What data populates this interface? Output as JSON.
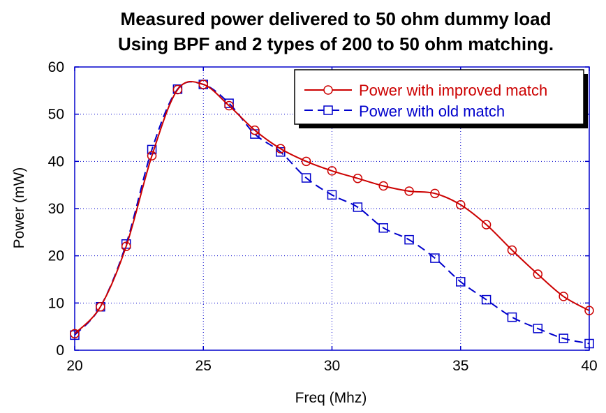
{
  "chart_data": {
    "type": "line",
    "title_lines": [
      "Measured power delivered to 50 ohm dummy load",
      "Using BPF and 2 types of 200 to 50 ohm matching."
    ],
    "xlabel": "Freq (Mhz)",
    "ylabel": "Power (mW)",
    "xlim": [
      20,
      40
    ],
    "ylim": [
      0,
      60
    ],
    "xticks": [
      20,
      25,
      30,
      35,
      40
    ],
    "yticks": [
      0,
      10,
      20,
      30,
      40,
      50,
      60
    ],
    "grid": true,
    "legend_position": "top-right",
    "series": [
      {
        "name": "Power with improved match",
        "color": "#cc0000",
        "marker": "circle",
        "line_style": "solid",
        "x": [
          20,
          21,
          22,
          23,
          24,
          25,
          26,
          27,
          28,
          29,
          30,
          31,
          32,
          33,
          34,
          35,
          36,
          37,
          38,
          39,
          40
        ],
        "y": [
          3.5,
          9.2,
          22.0,
          41.2,
          55.2,
          56.3,
          51.8,
          46.6,
          42.7,
          40.0,
          38.0,
          36.4,
          34.8,
          33.7,
          33.2,
          30.8,
          26.6,
          21.2,
          16.1,
          11.4,
          8.4
        ]
      },
      {
        "name": "Power with old match",
        "color": "#0000cc",
        "marker": "square",
        "line_style": "dashed",
        "x": [
          20,
          21,
          22,
          23,
          24,
          25,
          26,
          27,
          28,
          29,
          30,
          31,
          32,
          33,
          34,
          35,
          36,
          37,
          38,
          39,
          40
        ],
        "y": [
          3.2,
          9.2,
          22.5,
          42.5,
          55.3,
          56.3,
          52.3,
          45.8,
          42.0,
          36.5,
          32.9,
          30.3,
          25.9,
          23.4,
          19.5,
          14.5,
          10.7,
          7.0,
          4.6,
          2.5,
          1.4
        ]
      }
    ]
  }
}
